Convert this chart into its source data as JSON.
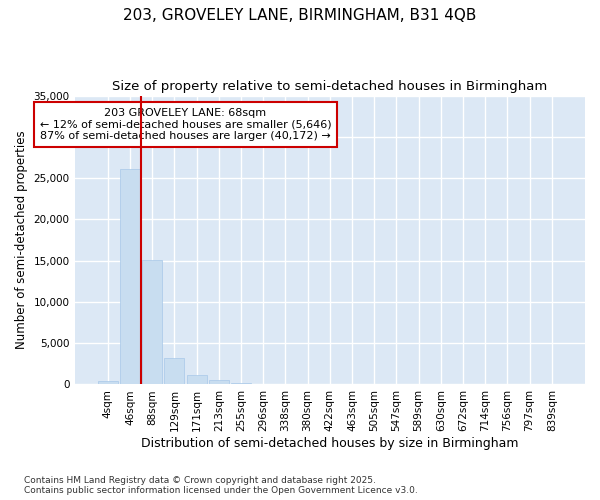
{
  "title": "203, GROVELEY LANE, BIRMINGHAM, B31 4QB",
  "subtitle": "Size of property relative to semi-detached houses in Birmingham",
  "xlabel": "Distribution of semi-detached houses by size in Birmingham",
  "ylabel": "Number of semi-detached properties",
  "bar_labels": [
    "4sqm",
    "46sqm",
    "88sqm",
    "129sqm",
    "171sqm",
    "213sqm",
    "255sqm",
    "296sqm",
    "338sqm",
    "380sqm",
    "422sqm",
    "463sqm",
    "505sqm",
    "547sqm",
    "589sqm",
    "630sqm",
    "672sqm",
    "714sqm",
    "756sqm",
    "797sqm",
    "839sqm"
  ],
  "bar_values": [
    400,
    26100,
    15100,
    3250,
    1200,
    500,
    150,
    60,
    20,
    8,
    4,
    2,
    1,
    1,
    0,
    0,
    0,
    0,
    0,
    0,
    0
  ],
  "bar_color": "#c8ddf0",
  "bar_edge_color": "#a8c8e8",
  "ylim": [
    0,
    35000
  ],
  "yticks": [
    0,
    5000,
    10000,
    15000,
    20000,
    25000,
    30000,
    35000
  ],
  "red_line_x": 1.5,
  "red_line_color": "#cc0000",
  "annotation_text": "203 GROVELEY LANE: 68sqm\n← 12% of semi-detached houses are smaller (5,646)\n87% of semi-detached houses are larger (40,172) →",
  "annotation_box_facecolor": "#ffffff",
  "annotation_box_edgecolor": "#cc0000",
  "plot_bg_color": "#dce8f5",
  "figure_bg_color": "#ffffff",
  "grid_color": "#ffffff",
  "footer_line1": "Contains HM Land Registry data © Crown copyright and database right 2025.",
  "footer_line2": "Contains public sector information licensed under the Open Government Licence v3.0.",
  "title_fontsize": 11,
  "subtitle_fontsize": 9.5,
  "tick_fontsize": 7.5,
  "ylabel_fontsize": 8.5,
  "xlabel_fontsize": 9,
  "annotation_fontsize": 8,
  "footer_fontsize": 6.5
}
